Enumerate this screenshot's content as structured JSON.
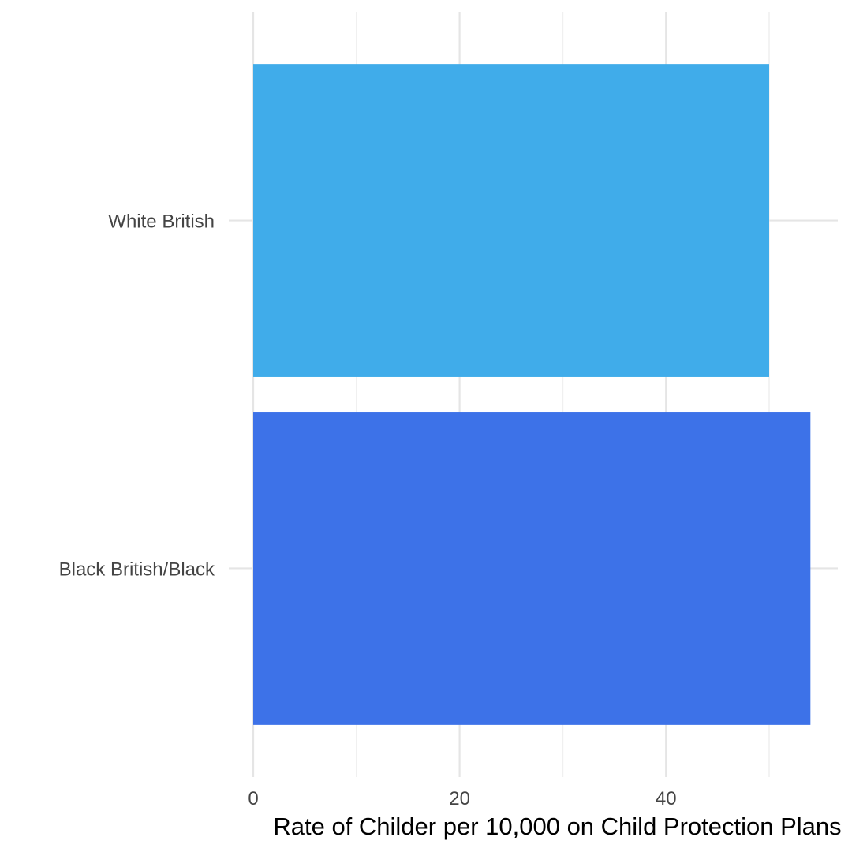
{
  "chart_data": {
    "type": "bar",
    "orientation": "horizontal",
    "categories": [
      "Black British/Black",
      "White British"
    ],
    "values": [
      54,
      50
    ],
    "colors": [
      "#3d72e8",
      "#40acea"
    ],
    "xlabel": "Rate of Childer per 10,000 on Child Protection Plans",
    "ylabel": "",
    "xlim": [
      0,
      56
    ],
    "xticks": [
      0,
      20,
      40
    ],
    "grid": true
  }
}
